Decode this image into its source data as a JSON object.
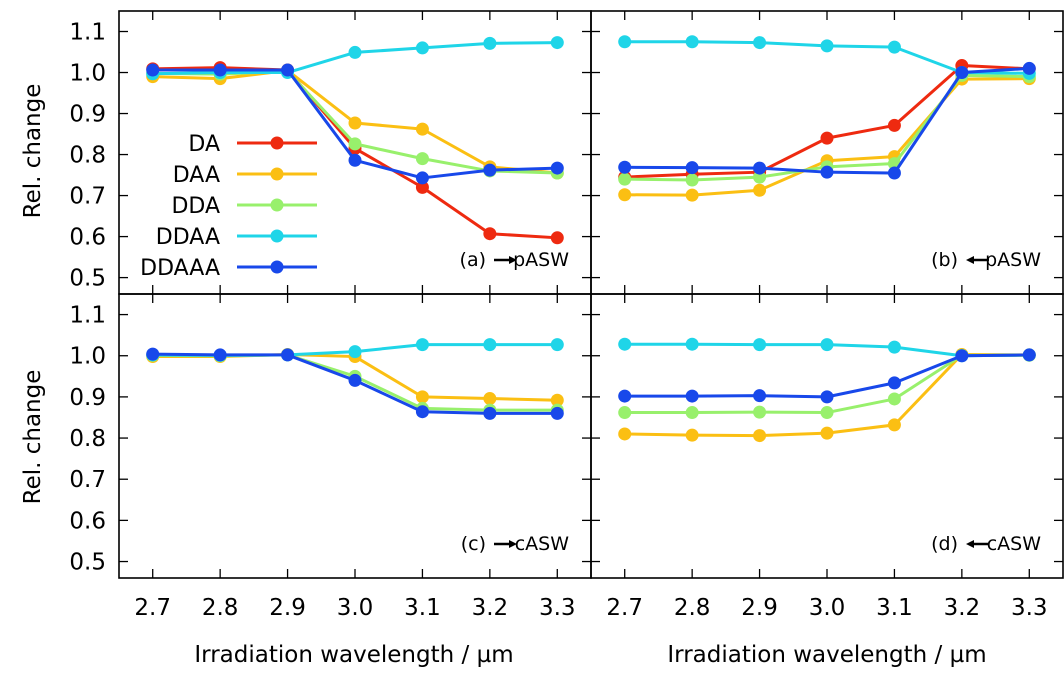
{
  "figure": {
    "ylabel": "Rel. change",
    "xlabel": "Irradiation wavelength / µm"
  },
  "colors": {
    "DA": "#ee2a10",
    "DAA": "#fbbf13",
    "DDA": "#98f06c",
    "DDAA": "#1fd5e8",
    "DDAAA": "#1848ea"
  },
  "legend": [
    "DA",
    "DAA",
    "DDA",
    "DDAA",
    "DDAAA"
  ],
  "chart_data": [
    {
      "type": "line",
      "panel_label": "(a)",
      "direction_arrow": "right",
      "annotation": "pASW",
      "xlabel": "Irradiation wavelength / µm",
      "ylabel": "Rel. change",
      "x": [
        2.7,
        2.8,
        2.9,
        3.0,
        3.1,
        3.2,
        3.3
      ],
      "xlim": [
        2.65,
        3.35
      ],
      "ylim": [
        0.46,
        1.15
      ],
      "xticks": [
        "2.7",
        "2.8",
        "2.9",
        "3.0",
        "3.1",
        "3.2",
        "3.3"
      ],
      "yticks": [
        "0.5",
        "0.6",
        "0.7",
        "0.8",
        "0.9",
        "1.0",
        "1.1"
      ],
      "series": [
        {
          "name": "DA",
          "values": [
            1.009,
            1.012,
            1.006,
            0.815,
            0.72,
            0.607,
            0.597
          ]
        },
        {
          "name": "DAA",
          "values": [
            0.99,
            0.985,
            1.005,
            0.877,
            0.862,
            0.77,
            0.755
          ]
        },
        {
          "name": "DDA",
          "values": [
            0.998,
            0.996,
            1.003,
            0.826,
            0.79,
            0.76,
            0.755
          ]
        },
        {
          "name": "DDAA",
          "values": [
            0.997,
            1.0,
            1.0,
            1.049,
            1.06,
            1.071,
            1.073
          ]
        },
        {
          "name": "DDAAA",
          "values": [
            1.006,
            1.006,
            1.006,
            0.786,
            0.743,
            0.762,
            0.767
          ]
        }
      ],
      "legend": "left"
    },
    {
      "type": "line",
      "panel_label": "(b)",
      "direction_arrow": "left",
      "annotation": "pASW",
      "xlabel": "Irradiation wavelength / µm",
      "x": [
        2.7,
        2.8,
        2.9,
        3.0,
        3.1,
        3.2,
        3.3
      ],
      "xlim": [
        2.65,
        3.35
      ],
      "ylim": [
        0.46,
        1.15
      ],
      "xticks": [
        "2.7",
        "2.8",
        "2.9",
        "3.0",
        "3.1",
        "3.2",
        "3.3"
      ],
      "series": [
        {
          "name": "DA",
          "values": [
            0.745,
            0.752,
            0.757,
            0.84,
            0.871,
            1.017,
            1.009
          ]
        },
        {
          "name": "DAA",
          "values": [
            0.702,
            0.701,
            0.713,
            0.785,
            0.795,
            0.984,
            0.985
          ]
        },
        {
          "name": "DDA",
          "values": [
            0.74,
            0.738,
            0.745,
            0.77,
            0.778,
            0.993,
            0.99
          ]
        },
        {
          "name": "DDAA",
          "values": [
            1.075,
            1.075,
            1.073,
            1.065,
            1.062,
            1.0,
            0.998
          ]
        },
        {
          "name": "DDAAA",
          "values": [
            0.769,
            0.768,
            0.767,
            0.757,
            0.755,
            1.0,
            1.01
          ]
        }
      ]
    },
    {
      "type": "line",
      "panel_label": "(c)",
      "direction_arrow": "right",
      "annotation": "cASW",
      "xlabel": "Irradiation wavelength / µm",
      "ylabel": "Rel. change",
      "x": [
        2.7,
        2.8,
        2.9,
        3.0,
        3.1,
        3.2,
        3.3
      ],
      "xlim": [
        2.65,
        3.35
      ],
      "ylim": [
        0.46,
        1.15
      ],
      "xticks": [
        "2.7",
        "2.8",
        "2.9",
        "3.0",
        "3.1",
        "3.2",
        "3.3"
      ],
      "yticks": [
        "0.5",
        "0.6",
        "0.7",
        "0.8",
        "0.9",
        "1.0",
        "1.1"
      ],
      "series": [
        {
          "name": "DAA",
          "values": [
            0.998,
            0.998,
            1.003,
            0.998,
            0.9,
            0.896,
            0.892
          ]
        },
        {
          "name": "DDA",
          "values": [
            1.001,
            1.0,
            1.002,
            0.95,
            0.872,
            0.868,
            0.868
          ]
        },
        {
          "name": "DDAA",
          "values": [
            1.002,
            1.001,
            1.002,
            1.01,
            1.027,
            1.027,
            1.027
          ]
        },
        {
          "name": "DDAAA",
          "values": [
            1.004,
            1.002,
            1.002,
            0.94,
            0.864,
            0.86,
            0.86
          ]
        }
      ]
    },
    {
      "type": "line",
      "panel_label": "(d)",
      "direction_arrow": "left",
      "annotation": "cASW",
      "xlabel": "Irradiation wavelength / µm",
      "x": [
        2.7,
        2.8,
        2.9,
        3.0,
        3.1,
        3.2,
        3.3
      ],
      "xlim": [
        2.65,
        3.35
      ],
      "ylim": [
        0.46,
        1.15
      ],
      "xticks": [
        "2.7",
        "2.8",
        "2.9",
        "3.0",
        "3.1",
        "3.2",
        "3.3"
      ],
      "series": [
        {
          "name": "DAA",
          "values": [
            0.81,
            0.807,
            0.806,
            0.812,
            0.832,
            1.003,
            1.002
          ]
        },
        {
          "name": "DDA",
          "values": [
            0.862,
            0.862,
            0.863,
            0.862,
            0.895,
            1.001,
            1.001
          ]
        },
        {
          "name": "DDAA",
          "values": [
            1.028,
            1.028,
            1.027,
            1.027,
            1.021,
            1.0,
            1.002
          ]
        },
        {
          "name": "DDAAA",
          "values": [
            0.902,
            0.902,
            0.903,
            0.9,
            0.934,
            1.0,
            1.002
          ]
        }
      ]
    }
  ]
}
